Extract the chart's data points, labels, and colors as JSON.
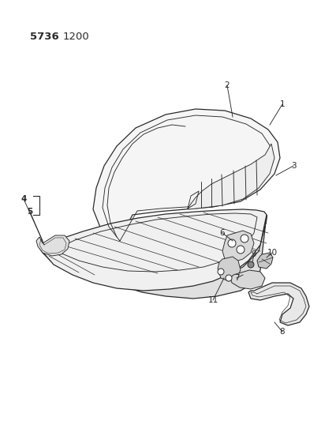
{
  "title_part1": "5736",
  "title_part2": "1200",
  "bg_color": "#ffffff",
  "line_color": "#2a2a2a",
  "label_color": "#111111",
  "title_fontsize": 9.5,
  "label_fontsize": 7.5
}
